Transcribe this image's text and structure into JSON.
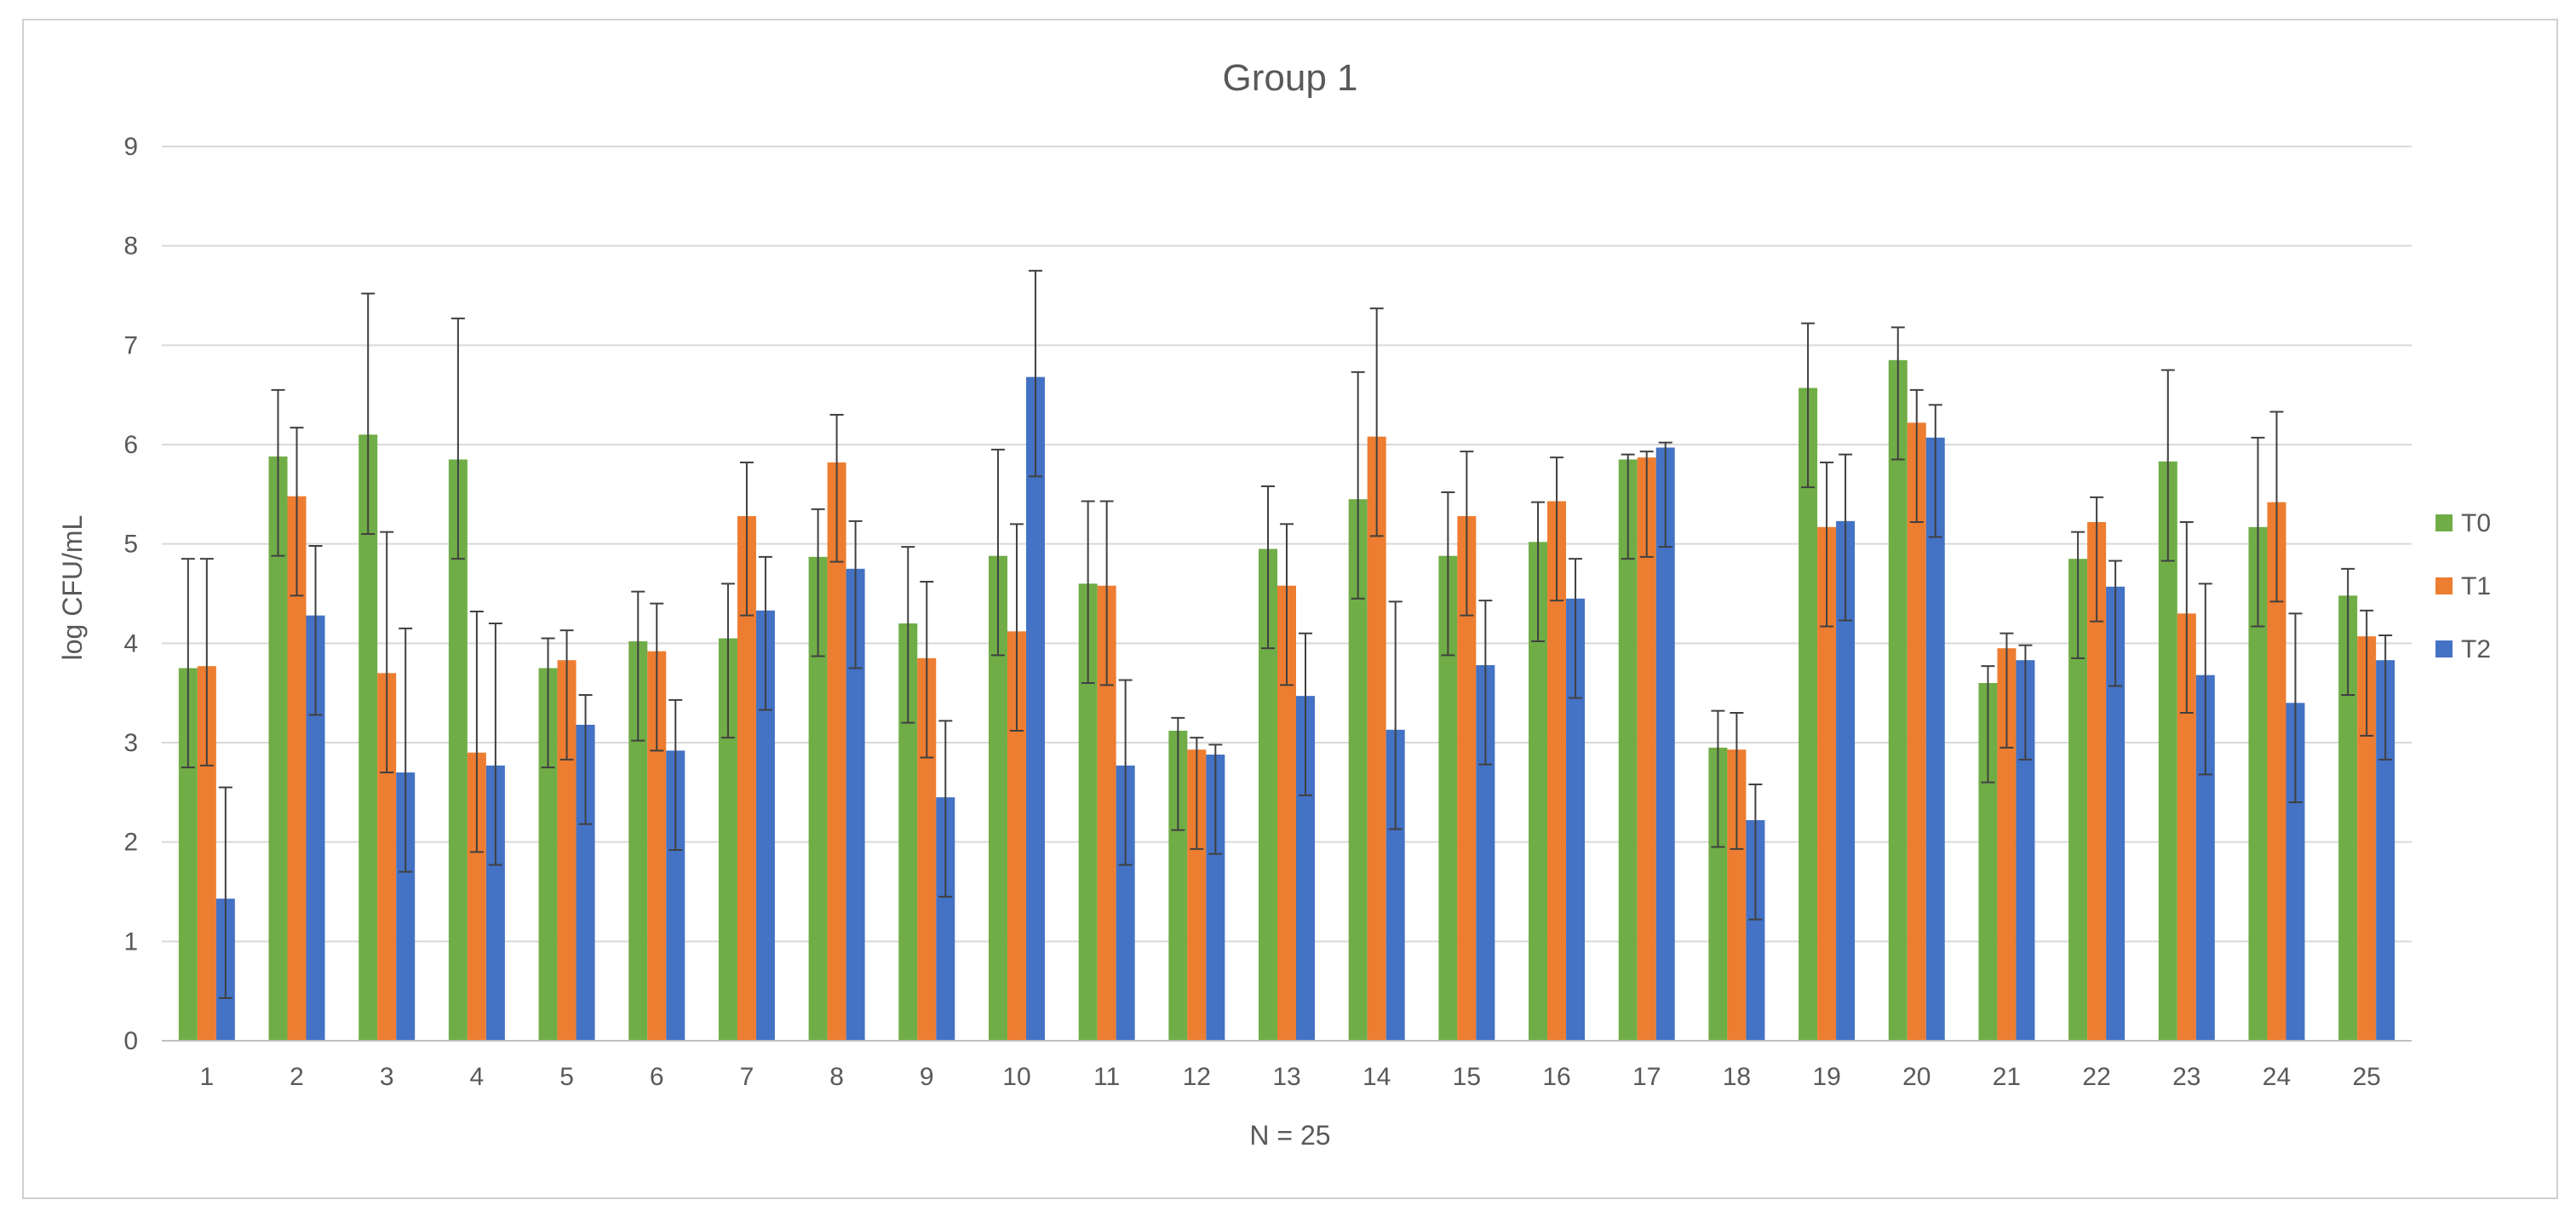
{
  "chart_data": {
    "type": "bar",
    "title": "Group 1",
    "xlabel": "N = 25",
    "ylabel": "log CFU/mL",
    "ylim": [
      0,
      9
    ],
    "yticks": [
      "0",
      "1",
      "2",
      "3",
      "4",
      "5",
      "6",
      "7",
      "8",
      "9"
    ],
    "grid": true,
    "legend_position": "right",
    "categories": [
      "1",
      "2",
      "3",
      "4",
      "5",
      "6",
      "7",
      "8",
      "9",
      "10",
      "11",
      "12",
      "13",
      "14",
      "15",
      "16",
      "17",
      "18",
      "19",
      "20",
      "21",
      "22",
      "23",
      "24",
      "25"
    ],
    "series": [
      {
        "name": "T0",
        "color": "#70ad47",
        "values": [
          3.75,
          5.88,
          6.1,
          5.85,
          3.75,
          4.02,
          4.05,
          4.87,
          4.2,
          4.88,
          4.6,
          3.12,
          4.95,
          5.45,
          4.88,
          5.02,
          5.85,
          2.95,
          6.57,
          6.85,
          3.6,
          4.85,
          5.83,
          5.17,
          4.48
        ],
        "err_high": [
          4.85,
          6.55,
          7.52,
          7.27,
          4.05,
          4.52,
          4.6,
          5.35,
          4.97,
          5.95,
          5.43,
          3.25,
          5.58,
          6.73,
          5.52,
          5.42,
          5.9,
          3.32,
          7.22,
          7.18,
          3.77,
          5.12,
          6.75,
          6.07,
          4.75
        ],
        "err_low": [
          2.75,
          4.88,
          5.1,
          4.85,
          2.75,
          3.02,
          3.05,
          3.87,
          3.2,
          3.88,
          3.6,
          2.12,
          3.95,
          4.45,
          3.88,
          4.02,
          4.85,
          1.95,
          5.57,
          5.85,
          2.6,
          3.85,
          4.83,
          4.17,
          3.48
        ]
      },
      {
        "name": "T1",
        "color": "#ed7d31",
        "values": [
          3.77,
          5.48,
          3.7,
          2.9,
          3.83,
          3.92,
          5.28,
          5.82,
          3.85,
          4.12,
          4.58,
          2.93,
          4.58,
          6.08,
          5.28,
          5.43,
          5.87,
          2.93,
          5.17,
          6.22,
          3.95,
          5.22,
          4.3,
          5.42,
          4.07
        ],
        "err_high": [
          4.85,
          6.17,
          5.12,
          4.32,
          4.13,
          4.4,
          5.82,
          6.3,
          4.62,
          5.2,
          5.43,
          3.05,
          5.2,
          7.37,
          5.93,
          5.87,
          5.93,
          3.3,
          5.82,
          6.55,
          4.1,
          5.47,
          5.22,
          6.33,
          4.33
        ],
        "err_low": [
          2.77,
          4.48,
          2.7,
          1.9,
          2.83,
          2.92,
          4.28,
          4.82,
          2.85,
          3.12,
          3.58,
          1.93,
          3.58,
          5.08,
          4.28,
          4.43,
          4.87,
          1.93,
          4.17,
          5.22,
          2.95,
          4.22,
          3.3,
          4.42,
          3.07
        ]
      },
      {
        "name": "T2",
        "color": "#4472c4",
        "values": [
          1.43,
          4.28,
          2.7,
          2.77,
          3.18,
          2.92,
          4.33,
          4.75,
          2.45,
          6.68,
          2.77,
          2.88,
          3.47,
          3.13,
          3.78,
          4.45,
          5.97,
          2.22,
          5.23,
          6.07,
          3.83,
          4.57,
          3.68,
          3.4,
          3.83
        ],
        "err_high": [
          2.55,
          4.98,
          4.15,
          4.2,
          3.48,
          3.43,
          4.87,
          5.23,
          3.22,
          7.75,
          3.63,
          2.98,
          4.1,
          4.42,
          4.43,
          4.85,
          6.02,
          2.58,
          5.9,
          6.4,
          3.98,
          4.83,
          4.6,
          4.3,
          4.08
        ],
        "err_low": [
          0.43,
          3.28,
          1.7,
          1.77,
          2.18,
          1.92,
          3.33,
          3.75,
          1.45,
          5.68,
          1.77,
          1.88,
          2.47,
          2.13,
          2.78,
          3.45,
          4.97,
          1.22,
          4.23,
          5.07,
          2.83,
          3.57,
          2.68,
          2.4,
          2.83
        ]
      }
    ]
  }
}
